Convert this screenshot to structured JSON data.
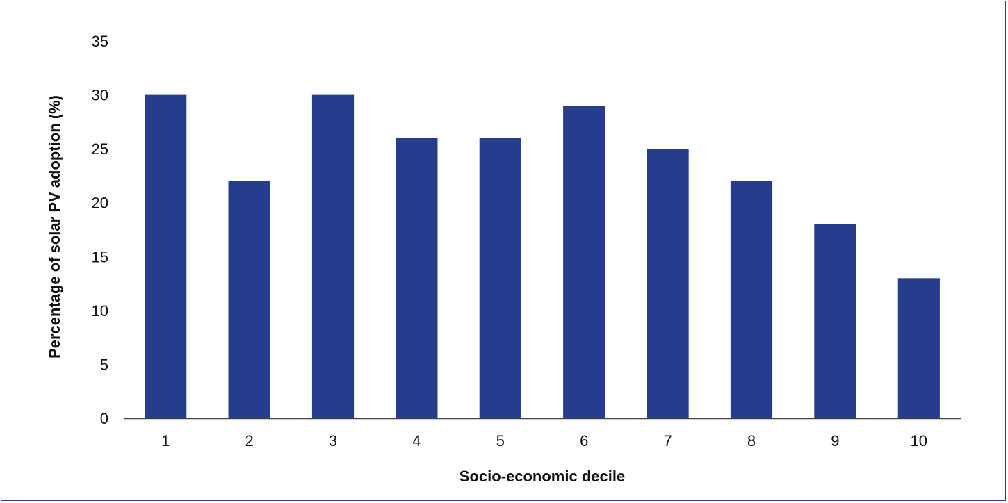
{
  "chart_data": {
    "type": "bar",
    "xlabel": "Socio-economic decile",
    "ylabel": "Percentage of solar PV adoption (%)",
    "categories": [
      "1",
      "2",
      "3",
      "4",
      "5",
      "6",
      "7",
      "8",
      "9",
      "10"
    ],
    "values": [
      30,
      22,
      30,
      26,
      26,
      29,
      25,
      22,
      18,
      13
    ],
    "ylim": [
      0,
      35
    ],
    "yticks": [
      0,
      5,
      10,
      15,
      20,
      25,
      30,
      35
    ],
    "grid": false,
    "legend": "none",
    "colors": {
      "bar": "#253d8c",
      "frame": "#2a3f8f",
      "axis": "#444444"
    }
  }
}
